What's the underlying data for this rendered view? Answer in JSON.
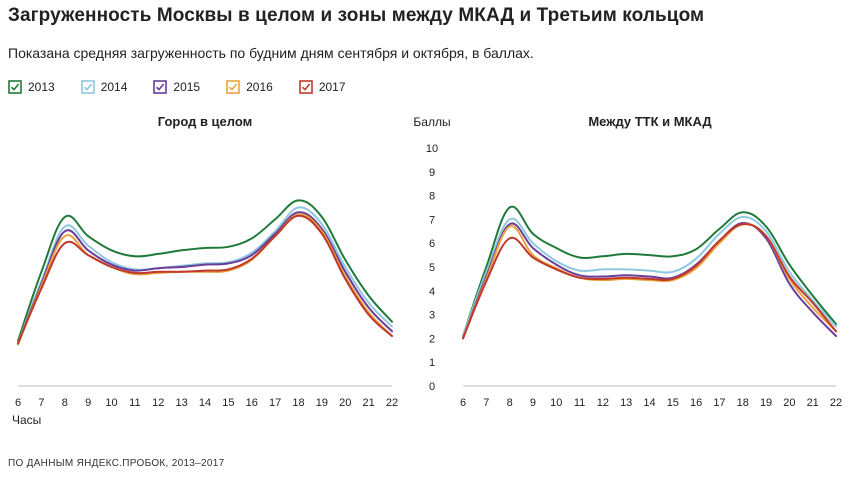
{
  "title": "Загруженность Москвы в целом и зоны между МКАД и Третьим кольцом",
  "subtitle": "Показана средняя загруженность по будним дням сентября и октября, в баллах.",
  "source": "ПО ДАННЫМ ЯНДЕКС.ПРОБОК, 2013–2017",
  "legend": [
    {
      "label": "2013",
      "color": "#1f7a3a"
    },
    {
      "label": "2014",
      "color": "#8ec8e0"
    },
    {
      "label": "2015",
      "color": "#6a3d9a"
    },
    {
      "label": "2016",
      "color": "#e8a33d"
    },
    {
      "label": "2017",
      "color": "#c0392b"
    }
  ],
  "chart_data": [
    {
      "type": "line",
      "title": "Город в целом",
      "xlabel": "Часы",
      "ylabel": "",
      "x": [
        6,
        7,
        8,
        9,
        10,
        11,
        12,
        13,
        14,
        15,
        16,
        17,
        18,
        19,
        20,
        21,
        22
      ],
      "ylim": [
        0,
        10
      ],
      "series": [
        {
          "name": "2013",
          "values": [
            1.9,
            4.8,
            7.1,
            6.3,
            5.7,
            5.45,
            5.55,
            5.7,
            5.8,
            5.85,
            6.2,
            7.0,
            7.8,
            7.1,
            5.3,
            3.8,
            2.7
          ]
        },
        {
          "name": "2014",
          "values": [
            1.8,
            4.4,
            6.7,
            5.9,
            5.2,
            4.9,
            4.95,
            5.05,
            5.15,
            5.2,
            5.6,
            6.5,
            7.5,
            6.8,
            5.0,
            3.5,
            2.5
          ]
        },
        {
          "name": "2015",
          "values": [
            1.75,
            4.3,
            6.5,
            5.7,
            5.1,
            4.85,
            4.95,
            5.0,
            5.1,
            5.15,
            5.5,
            6.4,
            7.3,
            6.6,
            4.8,
            3.3,
            2.3
          ]
        },
        {
          "name": "2016",
          "values": [
            1.75,
            4.2,
            6.3,
            5.5,
            5.0,
            4.7,
            4.75,
            4.8,
            4.8,
            4.85,
            5.3,
            6.3,
            7.2,
            6.5,
            4.6,
            3.1,
            2.1
          ]
        },
        {
          "name": "2017",
          "values": [
            1.8,
            4.1,
            6.0,
            5.5,
            5.0,
            4.75,
            4.8,
            4.8,
            4.85,
            4.9,
            5.35,
            6.3,
            7.15,
            6.4,
            4.5,
            3.0,
            2.1
          ]
        }
      ]
    },
    {
      "type": "line",
      "title": "Между ТТК и МКАД",
      "xlabel": "",
      "ylabel": "Баллы",
      "x": [
        6,
        7,
        8,
        9,
        10,
        11,
        12,
        13,
        14,
        15,
        16,
        17,
        18,
        19,
        20,
        21,
        22
      ],
      "ylim": [
        0,
        10
      ],
      "yticks": [
        0,
        1,
        2,
        3,
        4,
        5,
        6,
        7,
        8,
        9,
        10
      ],
      "series": [
        {
          "name": "2013",
          "values": [
            2.1,
            5.0,
            7.5,
            6.4,
            5.8,
            5.4,
            5.45,
            5.55,
            5.5,
            5.45,
            5.75,
            6.6,
            7.3,
            6.7,
            5.1,
            3.8,
            2.6
          ]
        },
        {
          "name": "2014",
          "values": [
            2.1,
            4.8,
            7.0,
            6.0,
            5.25,
            4.85,
            4.9,
            4.9,
            4.85,
            4.8,
            5.35,
            6.4,
            7.1,
            6.5,
            4.8,
            3.6,
            2.5
          ]
        },
        {
          "name": "2015",
          "values": [
            2.0,
            4.6,
            6.8,
            5.8,
            5.1,
            4.65,
            4.6,
            4.65,
            4.6,
            4.55,
            5.1,
            6.1,
            6.85,
            6.2,
            4.3,
            3.1,
            2.1
          ]
        },
        {
          "name": "2016",
          "values": [
            2.0,
            4.5,
            6.7,
            5.5,
            4.95,
            4.55,
            4.45,
            4.5,
            4.45,
            4.45,
            4.95,
            6.0,
            6.8,
            6.3,
            4.5,
            3.3,
            2.3
          ]
        },
        {
          "name": "2017",
          "values": [
            2.0,
            4.4,
            6.2,
            5.4,
            4.9,
            4.55,
            4.5,
            4.55,
            4.5,
            4.5,
            5.05,
            6.1,
            6.8,
            6.3,
            4.6,
            3.5,
            2.3
          ]
        }
      ]
    }
  ]
}
